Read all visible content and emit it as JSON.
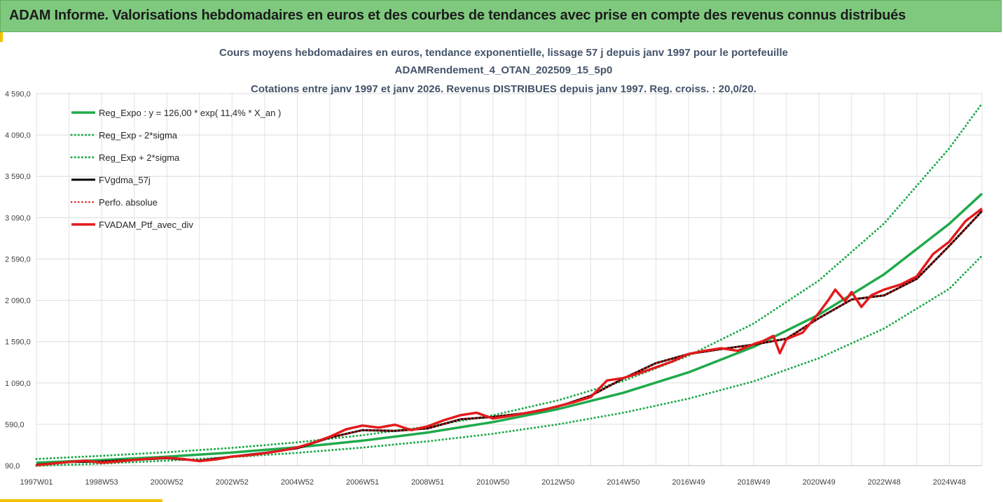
{
  "header": {
    "title": "ADAM Informe. Valorisations hebdomadaires en euros et des courbes de tendances avec prise en compte des revenus connus distribués"
  },
  "chart_data": {
    "type": "line",
    "title_lines": [
      "Cours moyens hebdomadaires  en euros, tendance exponentielle, lissage 57 j depuis janv 1997 pour le portefeuille",
      "ADAMRendement_4_OTAN_202509_15_5p0",
      "Cotations entre janv 1997 et janv 2026. Revenus DISTRIBUES depuis janv 1997. Reg. croiss. : 20,0/20."
    ],
    "xlabel": "",
    "ylabel": "",
    "ylim": [
      90,
      4590
    ],
    "y_ticks": [
      "90,0",
      "590,0",
      "1 090,0",
      "1 590,0",
      "2 090,0",
      "2 590,0",
      "3 090,0",
      "3 590,0",
      "4 090,0",
      "4 590,0"
    ],
    "x_range": [
      1997.0,
      2026.0
    ],
    "x_ticks": [
      {
        "label": "1997W01",
        "year": 1997.0
      },
      {
        "label": "1998W53",
        "year": 1999.0
      },
      {
        "label": "2000W52",
        "year": 2001.0
      },
      {
        "label": "2002W52",
        "year": 2003.0
      },
      {
        "label": "2004W52",
        "year": 2005.0
      },
      {
        "label": "2006W51",
        "year": 2007.0
      },
      {
        "label": "2008W51",
        "year": 2009.0
      },
      {
        "label": "2010W50",
        "year": 2011.0
      },
      {
        "label": "2012W50",
        "year": 2013.0
      },
      {
        "label": "2014W50",
        "year": 2015.0
      },
      {
        "label": "2016W49",
        "year": 2017.0
      },
      {
        "label": "2018W49",
        "year": 2019.0
      },
      {
        "label": "2020W49",
        "year": 2021.0
      },
      {
        "label": "2022W48",
        "year": 2023.0
      },
      {
        "label": "2024W48",
        "year": 2025.0
      }
    ],
    "grid": true,
    "legend_position": "top-left",
    "series": [
      {
        "name": "Reg_Expo : y = 126,00 * exp( 11,4% *  X_an )",
        "color": "#1faa4b",
        "style": "solid",
        "width": 3.5,
        "x": [
          1997,
          1999,
          2001,
          2003,
          2005,
          2007,
          2009,
          2011,
          2013,
          2015,
          2017,
          2019,
          2021,
          2023,
          2025,
          2026
        ],
        "y": [
          126,
          158,
          198,
          249,
          312,
          392,
          491,
          617,
          774,
          971,
          1218,
          1528,
          1917,
          2405,
          3017,
          3380
        ]
      },
      {
        "name": "Reg_Exp - 2*sigma",
        "color": "#1faa4b",
        "style": "dotted",
        "width": 3,
        "x": [
          1997,
          1999,
          2001,
          2003,
          2005,
          2007,
          2009,
          2011,
          2013,
          2015,
          2017,
          2019,
          2021,
          2023,
          2025,
          2026
        ],
        "y": [
          88,
          115,
          150,
          193,
          245,
          308,
          384,
          476,
          590,
          730,
          900,
          1110,
          1390,
          1750,
          2230,
          2630
        ]
      },
      {
        "name": "Reg_Exp + 2*sigma",
        "color": "#1faa4b",
        "style": "dotted",
        "width": 3,
        "x": [
          1997,
          1999,
          2001,
          2003,
          2005,
          2007,
          2009,
          2011,
          2013,
          2015,
          2017,
          2019,
          2021,
          2023,
          2025,
          2026
        ],
        "y": [
          170,
          208,
          252,
          305,
          372,
          458,
          564,
          700,
          880,
          1115,
          1420,
          1810,
          2330,
          3020,
          3930,
          4470
        ]
      },
      {
        "name": "FVgdma_57j",
        "color": "#000000",
        "style": "solid",
        "width": 3,
        "x": [
          1997,
          1998,
          1999,
          2000,
          2001,
          2002,
          2003,
          2004,
          2005,
          2006,
          2007,
          2008,
          2009,
          2010,
          2011,
          2012,
          2013,
          2014,
          2015,
          2016,
          2017,
          2018,
          2019,
          2020,
          2021,
          2022,
          2023,
          2024,
          2025,
          2026
        ],
        "y": [
          100,
          135,
          140,
          160,
          180,
          150,
          200,
          245,
          300,
          430,
          520,
          510,
          540,
          650,
          680,
          725,
          805,
          935,
          1145,
          1330,
          1440,
          1500,
          1555,
          1625,
          1875,
          2100,
          2150,
          2350,
          2750,
          3170
        ]
      },
      {
        "name": "Perfo. absolue",
        "color": "#e31a1c",
        "style": "dotted",
        "width": 2.5,
        "x": [
          1997,
          1998,
          1999,
          2000,
          2001,
          2002,
          2003,
          2004,
          2005,
          2006,
          2007,
          2008,
          2009,
          2010,
          2011,
          2012,
          2013,
          2014,
          2015,
          2016,
          2017,
          2018,
          2019,
          2020,
          2021,
          2022,
          2023,
          2024,
          2025,
          2026
        ],
        "y": [
          100,
          135,
          140,
          160,
          180,
          150,
          200,
          245,
          300,
          430,
          520,
          510,
          540,
          650,
          680,
          725,
          805,
          935,
          1145,
          1330,
          1440,
          1500,
          1555,
          1625,
          1875,
          2100,
          2150,
          2350,
          2750,
          3170
        ]
      },
      {
        "name": "FVADAM_Ptf_avec_div",
        "color": "#e31a1c",
        "style": "solid",
        "width": 3.5,
        "x": [
          1997,
          1997.5,
          1998,
          1998.5,
          1999,
          1999.5,
          2000,
          2000.5,
          2001,
          2001.5,
          2002,
          2002.5,
          2003,
          2003.5,
          2004,
          2004.5,
          2005,
          2005.5,
          2006,
          2006.5,
          2007,
          2007.5,
          2008,
          2008.5,
          2009,
          2009.5,
          2010,
          2010.5,
          2011,
          2011.5,
          2012,
          2012.5,
          2013,
          2013.5,
          2014,
          2014.5,
          2015,
          2015.5,
          2016,
          2016.5,
          2017,
          2017.5,
          2018,
          2018.5,
          2019,
          2019.3,
          2019.6,
          2019.8,
          2020,
          2020.5,
          2021,
          2021.3,
          2021.5,
          2021.8,
          2022,
          2022.3,
          2022.6,
          2023,
          2023.5,
          2024,
          2024.5,
          2025,
          2025.5,
          2026
        ],
        "y": [
          95,
          115,
          135,
          150,
          125,
          140,
          160,
          175,
          185,
          170,
          145,
          165,
          200,
          215,
          240,
          270,
          310,
          370,
          440,
          530,
          575,
          550,
          585,
          520,
          565,
          640,
          700,
          730,
          660,
          690,
          725,
          760,
          810,
          860,
          920,
          1120,
          1150,
          1210,
          1280,
          1350,
          1440,
          1480,
          1510,
          1480,
          1560,
          1600,
          1660,
          1450,
          1620,
          1700,
          1940,
          2100,
          2220,
          2080,
          2190,
          2010,
          2150,
          2220,
          2280,
          2380,
          2650,
          2800,
          3050,
          3200
        ]
      }
    ]
  }
}
